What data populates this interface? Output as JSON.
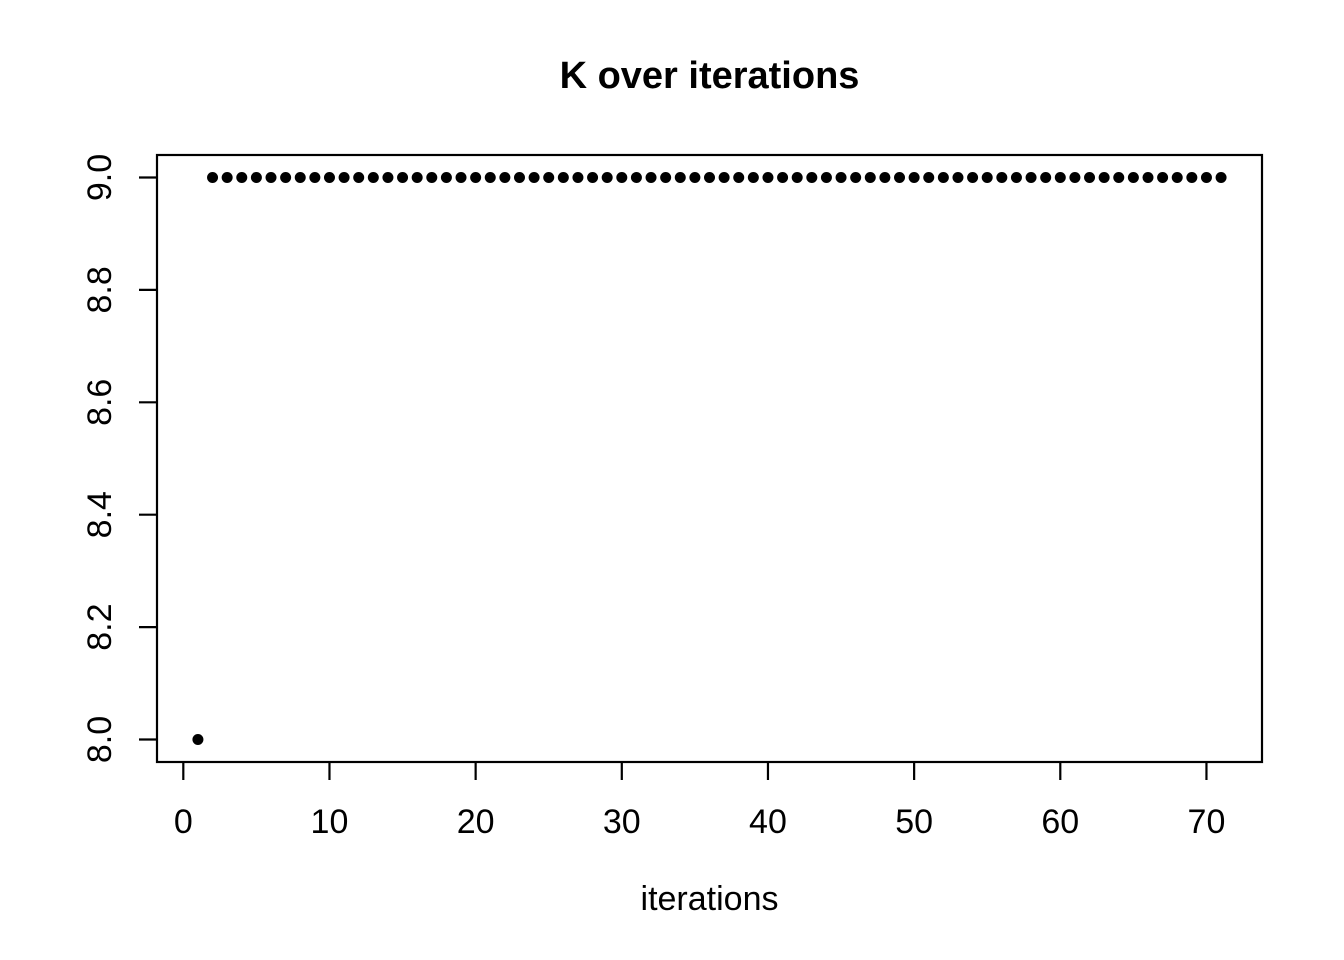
{
  "chart_data": {
    "type": "scatter",
    "title": "K over iterations",
    "xlabel": "iterations",
    "ylabel": "",
    "x_ticks": [
      0,
      10,
      20,
      30,
      40,
      50,
      60,
      70
    ],
    "x_tick_labels": [
      "0",
      "10",
      "20",
      "30",
      "40",
      "50",
      "60",
      "70"
    ],
    "y_ticks": [
      8.0,
      8.2,
      8.4,
      8.6,
      8.8,
      9.0
    ],
    "y_tick_labels": [
      "8.0",
      "8.2",
      "8.4",
      "8.6",
      "8.8",
      "9.0"
    ],
    "xlim": [
      -1.8,
      73.8
    ],
    "ylim": [
      7.96,
      9.04
    ],
    "grid": false,
    "legend": false,
    "background_color": "#ffffff",
    "axis_color": "#000000",
    "point_color": "#000000",
    "point_shape": "filled-circle",
    "points": [
      [
        1,
        8
      ],
      [
        2,
        9
      ],
      [
        3,
        9
      ],
      [
        4,
        9
      ],
      [
        5,
        9
      ],
      [
        6,
        9
      ],
      [
        7,
        9
      ],
      [
        8,
        9
      ],
      [
        9,
        9
      ],
      [
        10,
        9
      ],
      [
        11,
        9
      ],
      [
        12,
        9
      ],
      [
        13,
        9
      ],
      [
        14,
        9
      ],
      [
        15,
        9
      ],
      [
        16,
        9
      ],
      [
        17,
        9
      ],
      [
        18,
        9
      ],
      [
        19,
        9
      ],
      [
        20,
        9
      ],
      [
        21,
        9
      ],
      [
        22,
        9
      ],
      [
        23,
        9
      ],
      [
        24,
        9
      ],
      [
        25,
        9
      ],
      [
        26,
        9
      ],
      [
        27,
        9
      ],
      [
        28,
        9
      ],
      [
        29,
        9
      ],
      [
        30,
        9
      ],
      [
        31,
        9
      ],
      [
        32,
        9
      ],
      [
        33,
        9
      ],
      [
        34,
        9
      ],
      [
        35,
        9
      ],
      [
        36,
        9
      ],
      [
        37,
        9
      ],
      [
        38,
        9
      ],
      [
        39,
        9
      ],
      [
        40,
        9
      ],
      [
        41,
        9
      ],
      [
        42,
        9
      ],
      [
        43,
        9
      ],
      [
        44,
        9
      ],
      [
        45,
        9
      ],
      [
        46,
        9
      ],
      [
        47,
        9
      ],
      [
        48,
        9
      ],
      [
        49,
        9
      ],
      [
        50,
        9
      ],
      [
        51,
        9
      ],
      [
        52,
        9
      ],
      [
        53,
        9
      ],
      [
        54,
        9
      ],
      [
        55,
        9
      ],
      [
        56,
        9
      ],
      [
        57,
        9
      ],
      [
        58,
        9
      ],
      [
        59,
        9
      ],
      [
        60,
        9
      ],
      [
        61,
        9
      ],
      [
        62,
        9
      ],
      [
        63,
        9
      ],
      [
        64,
        9
      ],
      [
        65,
        9
      ],
      [
        66,
        9
      ],
      [
        67,
        9
      ],
      [
        68,
        9
      ],
      [
        69,
        9
      ],
      [
        70,
        9
      ],
      [
        71,
        9
      ]
    ]
  }
}
